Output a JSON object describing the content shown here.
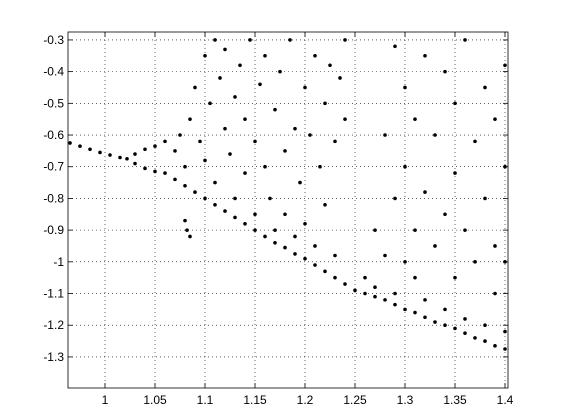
{
  "chart_data": {
    "type": "scatter",
    "color": "#000000",
    "grid": true,
    "xlim": [
      0.963,
      1.403
    ],
    "ylim": [
      -1.398,
      -0.275
    ],
    "xticks": [
      1,
      1.05,
      1.1,
      1.15,
      1.2,
      1.25,
      1.3,
      1.35,
      1.4
    ],
    "yticks": [
      -0.3,
      -0.4,
      -0.5,
      -0.6,
      -0.7,
      -0.8,
      -0.9,
      -1,
      -1.1,
      -1.2,
      -1.3
    ],
    "x": [
      0.965,
      0.975,
      0.985,
      0.995,
      1.005,
      1.015,
      1.022,
      1.03,
      1.04,
      1.05,
      1.06,
      1.03,
      1.04,
      1.05,
      1.06,
      1.07,
      1.08,
      1.09,
      1.1,
      1.11,
      1.12,
      1.13,
      1.14,
      1.15,
      1.16,
      1.17,
      1.18,
      1.19,
      1.2,
      1.21,
      1.22,
      1.23,
      1.24,
      1.25,
      1.26,
      1.27,
      1.28,
      1.29,
      1.3,
      1.31,
      1.32,
      1.33,
      1.34,
      1.35,
      1.36,
      1.37,
      1.38,
      1.39,
      1.4,
      1.07,
      1.075,
      1.08,
      1.085,
      1.09,
      1.095,
      1.1,
      1.1,
      1.105,
      1.11,
      1.11,
      1.115,
      1.12,
      1.12,
      1.125,
      1.13,
      1.13,
      1.135,
      1.14,
      1.14,
      1.145,
      1.15,
      1.15,
      1.155,
      1.16,
      1.16,
      1.165,
      1.17,
      1.17,
      1.175,
      1.18,
      1.18,
      1.185,
      1.19,
      1.19,
      1.195,
      1.2,
      1.2,
      1.205,
      1.21,
      1.21,
      1.215,
      1.22,
      1.22,
      1.225,
      1.23,
      1.23,
      1.235,
      1.24,
      1.24,
      1.08,
      1.082,
      1.085,
      1.26,
      1.27,
      1.27,
      1.28,
      1.28,
      1.29,
      1.29,
      1.29,
      1.3,
      1.3,
      1.3,
      1.31,
      1.31,
      1.31,
      1.32,
      1.32,
      1.32,
      1.33,
      1.33,
      1.34,
      1.34,
      1.34,
      1.35,
      1.35,
      1.35,
      1.36,
      1.36,
      1.36,
      1.37,
      1.37,
      1.38,
      1.38,
      1.38,
      1.39,
      1.39,
      1.39,
      1.4,
      1.4,
      1.4,
      1.4
    ],
    "y": [
      -0.625,
      -0.635,
      -0.645,
      -0.655,
      -0.663,
      -0.671,
      -0.675,
      -0.66,
      -0.645,
      -0.635,
      -0.62,
      -0.69,
      -0.705,
      -0.715,
      -0.72,
      -0.74,
      -0.76,
      -0.78,
      -0.8,
      -0.82,
      -0.84,
      -0.86,
      -0.88,
      -0.9,
      -0.92,
      -0.94,
      -0.955,
      -0.975,
      -0.99,
      -1.01,
      -1.03,
      -1.05,
      -1.07,
      -1.09,
      -1.1,
      -1.11,
      -1.12,
      -1.135,
      -1.15,
      -1.16,
      -1.175,
      -1.19,
      -1.2,
      -1.21,
      -1.225,
      -1.24,
      -1.25,
      -1.265,
      -1.275,
      -0.65,
      -0.6,
      -0.7,
      -0.55,
      -0.45,
      -0.62,
      -0.35,
      -0.68,
      -0.5,
      -0.3,
      -0.75,
      -0.42,
      -0.58,
      -0.33,
      -0.66,
      -0.48,
      -0.8,
      -0.38,
      -0.55,
      -0.72,
      -0.3,
      -0.62,
      -0.85,
      -0.44,
      -0.7,
      -0.35,
      -0.8,
      -0.52,
      -0.9,
      -0.4,
      -0.65,
      -0.85,
      -0.3,
      -0.58,
      -0.92,
      -0.75,
      -0.45,
      -0.88,
      -0.6,
      -0.35,
      -0.95,
      -0.7,
      -0.5,
      -0.82,
      -0.38,
      -0.62,
      -0.98,
      -0.42,
      -0.3,
      -0.55,
      -0.87,
      -0.9,
      -0.92,
      -1.05,
      -0.9,
      -1.08,
      -0.6,
      -0.98,
      -0.32,
      -0.8,
      -1.1,
      -0.45,
      -0.7,
      -1.0,
      -0.55,
      -0.9,
      -1.05,
      -0.35,
      -0.78,
      -1.12,
      -0.6,
      -0.95,
      -0.4,
      -0.85,
      -1.15,
      -0.5,
      -0.72,
      -1.05,
      -0.3,
      -0.9,
      -1.18,
      -0.62,
      -1.0,
      -0.45,
      -0.8,
      -1.2,
      -0.55,
      -0.95,
      -1.1,
      -0.38,
      -0.7,
      -1.0,
      -1.22
    ]
  }
}
